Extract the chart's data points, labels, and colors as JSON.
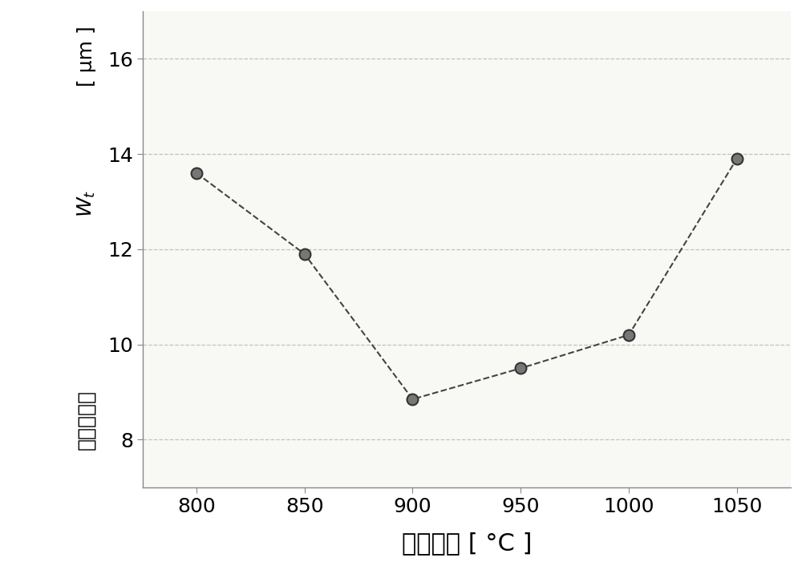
{
  "x": [
    800,
    850,
    900,
    950,
    1000,
    1050
  ],
  "y": [
    13.6,
    11.9,
    8.85,
    9.5,
    10.2,
    13.9
  ],
  "xlabel": "退火温度 [ °C ]",
  "xlim": [
    775,
    1075
  ],
  "ylim": [
    7,
    17
  ],
  "xticks": [
    800,
    850,
    900,
    950,
    1000,
    1050
  ],
  "yticks": [
    8,
    10,
    12,
    14,
    16
  ],
  "line_color": "#444444",
  "marker_facecolor": "#777777",
  "marker_edgecolor": "#333333",
  "background_color": "#ffffff",
  "plot_bg_color": "#f8f8f5",
  "grid_color": "#bbbbbb",
  "marker_size": 10,
  "line_width": 1.5,
  "xlabel_fontsize": 22,
  "ylabel_fontsize": 18,
  "tick_fontsize": 18,
  "ylabel_line1": "[ μm ]",
  "ylabel_line2": "$W_t$",
  "ylabel_line3": "起皼高度，"
}
